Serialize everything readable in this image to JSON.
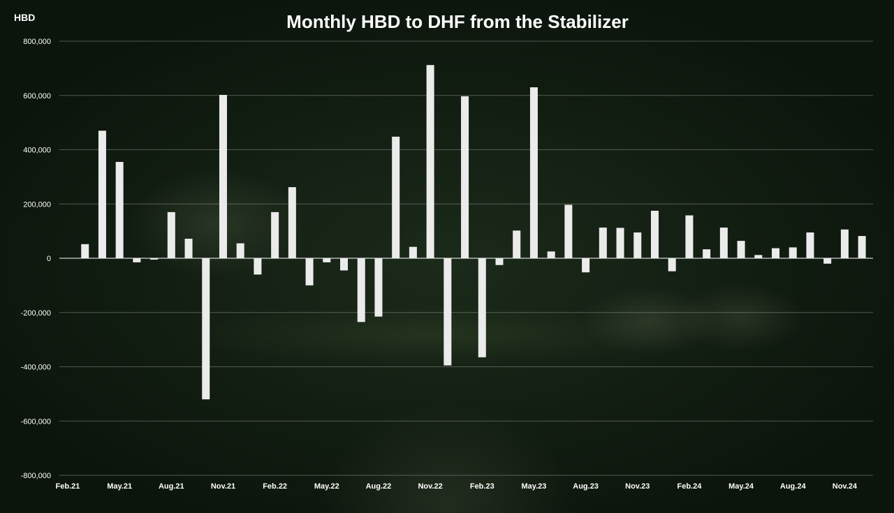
{
  "chart_data": {
    "type": "bar",
    "title": "Monthly HBD to DHF from the Stabilizer",
    "ylabel": "HBD",
    "ylim": [
      -800000,
      800000
    ],
    "yticks": [
      -800000,
      -600000,
      -400000,
      -200000,
      0,
      200000,
      400000,
      600000,
      800000
    ],
    "ytick_labels": [
      "-800,000",
      "-600,000",
      "-400,000",
      "-200,000",
      "0",
      "200,000",
      "400,000",
      "600,000",
      "800,000"
    ],
    "grid": true,
    "bar_color": "#ebebeb",
    "xtick_labels": [
      "Feb.21",
      "May.21",
      "Aug.21",
      "Nov.21",
      "Feb.22",
      "May.22",
      "Aug.22",
      "Nov.22",
      "Feb.23",
      "May.23",
      "Aug.23",
      "Nov.23",
      "Feb.24",
      "May.24",
      "Aug.24",
      "Nov.24"
    ],
    "categories": [
      "Feb.21",
      "Mar.21",
      "Apr.21",
      "May.21",
      "Jun.21",
      "Jul.21",
      "Aug.21",
      "Sep.21",
      "Oct.21",
      "Nov.21",
      "Dec.21",
      "Jan.22",
      "Feb.22",
      "Mar.22",
      "Apr.22",
      "May.22",
      "Jun.22",
      "Jul.22",
      "Aug.22",
      "Sep.22",
      "Oct.22",
      "Nov.22",
      "Dec.22",
      "Jan.23",
      "Feb.23",
      "Mar.23",
      "Apr.23",
      "May.23",
      "Jun.23",
      "Jul.23",
      "Aug.23",
      "Sep.23",
      "Oct.23",
      "Nov.23",
      "Dec.23",
      "Jan.24",
      "Feb.24",
      "Mar.24",
      "Apr.24",
      "May.24",
      "Jun.24",
      "Jul.24",
      "Aug.24",
      "Sep.24",
      "Oct.24",
      "Nov.24",
      "Dec.24"
    ],
    "values": [
      0,
      52000,
      470000,
      355000,
      -15000,
      -5000,
      170000,
      72000,
      -520000,
      602000,
      55000,
      -60000,
      170000,
      262000,
      -100000,
      -15000,
      -45000,
      -235000,
      -215000,
      448000,
      42000,
      712000,
      -395000,
      597000,
      -365000,
      -25000,
      102000,
      630000,
      25000,
      197000,
      -52000,
      113000,
      112000,
      95000,
      175000,
      -48000,
      158000,
      33000,
      113000,
      64000,
      12000,
      37000,
      40000,
      95000,
      -20000,
      106000,
      82000
    ]
  }
}
